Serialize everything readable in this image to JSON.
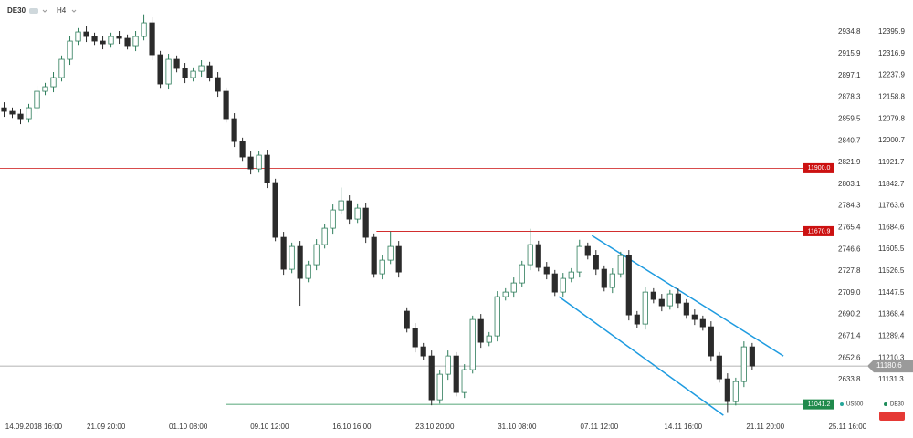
{
  "chart_data": {
    "type": "candlestick",
    "symbol": "DE30",
    "timeframe": "H4",
    "up_color": "#ffffff",
    "up_stroke": "#2e7d5b",
    "down_color": "#2b2b2b",
    "open": [
      12120.0,
      12107.0,
      12097.0,
      12080.4,
      12120.2,
      12180.0,
      12196.6,
      12229.8,
      12296.2,
      12362.6,
      12395.8,
      12379.2,
      12362.6,
      12352.6,
      12379.2,
      12372.6,
      12346.0,
      12379.2,
      12429.0,
      12312.8,
      12206.6,
      12296.2,
      12263.0,
      12229.8,
      12253.0,
      12273.0,
      12229.8,
      12180.0,
      12080.4,
      11997.4,
      11941.0,
      11897.8,
      11947.6,
      11848.0,
      11648.8,
      11532.6,
      11615.6,
      11499.4,
      11549.2,
      11622.2,
      11682.0,
      11748.4,
      11781.6,
      11715.2,
      11755.0,
      11648.8,
      11516.0,
      11565.8,
      11615.6,
      11380.0,
      11316.8,
      11250.4,
      11217.2,
      11057.8,
      11150.8,
      11217.2,
      11084.4,
      11167.4,
      11350.0,
      11267.0,
      11290.2,
      11433.0,
      11449.6,
      11482.8,
      11549.2,
      11622.2,
      11539.2,
      11516.0,
      11449.6,
      11499.4,
      11522.6,
      11615.6,
      11582.4,
      11532.6,
      11466.2,
      11516.0,
      11582.4,
      11366.6,
      11333.4,
      11449.6,
      11423.0,
      11399.8,
      11443.0,
      11409.8,
      11366.6,
      11350.0,
      11323.4,
      11217.2,
      11134.2,
      11051.2,
      11124.2,
      11250.4
    ],
    "high": [
      12140.0,
      12121.0,
      12117.0,
      12134.2,
      12200.0,
      12210.6,
      12249.8,
      12310.2,
      12382.6,
      12409.8,
      12415.8,
      12393.2,
      12382.6,
      12393.2,
      12399.2,
      12386.6,
      12399.2,
      12460.0,
      12449.0,
      12326.8,
      12316.2,
      12310.2,
      12283.0,
      12267.0,
      12293.0,
      12287.0,
      12249.8,
      12194.0,
      12100.4,
      12011.4,
      11961.0,
      11961.6,
      11967.6,
      11862.0,
      11668.8,
      11629.6,
      11635.6,
      11563.2,
      11642.2,
      11696.0,
      11768.4,
      11830.0,
      11801.6,
      11769.0,
      11775.0,
      11662.8,
      11585.8,
      11670.0,
      11635.6,
      11394.0,
      11336.8,
      11264.4,
      11237.2,
      11164.8,
      11237.2,
      11231.2,
      11187.4,
      11364.0,
      11370.0,
      11304.2,
      11453.0,
      11463.6,
      11502.8,
      11563.2,
      11680.0,
      11636.2,
      11559.2,
      11530.0,
      11519.4,
      11536.6,
      11640.0,
      11629.6,
      11602.4,
      11546.6,
      11536.0,
      11596.4,
      11602.4,
      11380.6,
      11469.6,
      11463.6,
      11443.0,
      11457.0,
      11463.0,
      11423.8,
      11386.6,
      11364.0,
      11343.4,
      11231.2,
      11154.2,
      11138.2,
      11270.4,
      11264.4
    ],
    "low": [
      12087.0,
      12083.0,
      12060.4,
      12066.4,
      12100.2,
      12166.0,
      12176.6,
      12215.8,
      12276.2,
      12348.6,
      12359.2,
      12348.6,
      12332.6,
      12338.6,
      12352.6,
      12332.0,
      12326.0,
      12365.2,
      12292.8,
      12192.6,
      12186.6,
      12249.0,
      12209.8,
      12215.8,
      12233.0,
      12215.8,
      12160.0,
      12066.4,
      11977.4,
      11927.0,
      11877.8,
      11883.8,
      11828.0,
      11634.8,
      11512.6,
      11518.6,
      11400.0,
      11485.4,
      11529.2,
      11608.2,
      11662.0,
      11734.4,
      11695.2,
      11701.2,
      11628.8,
      11502.0,
      11496.0,
      11551.8,
      11502.6,
      11302.8,
      11230.4,
      11203.2,
      11037.8,
      11043.8,
      11130.8,
      11070.4,
      11064.4,
      11153.4,
      11247.0,
      11253.0,
      11270.2,
      11419.0,
      11429.6,
      11468.8,
      11529.2,
      11525.2,
      11496.0,
      11435.6,
      11429.6,
      11485.4,
      11502.6,
      11568.4,
      11512.6,
      11452.2,
      11446.2,
      11502.0,
      11346.6,
      11319.4,
      11313.4,
      11409.0,
      11379.8,
      11385.8,
      11389.8,
      11352.6,
      11330.0,
      11309.4,
      11197.2,
      11120.2,
      11010.0,
      11037.2,
      11104.2,
      11166.6
    ],
    "close": [
      12107.0,
      12097.0,
      12080.4,
      12120.2,
      12180.0,
      12196.6,
      12229.8,
      12296.2,
      12362.6,
      12395.8,
      12379.2,
      12362.6,
      12352.6,
      12379.2,
      12372.6,
      12346.0,
      12379.2,
      12429.0,
      12312.8,
      12206.6,
      12296.2,
      12263.0,
      12229.8,
      12253.0,
      12273.0,
      12229.8,
      12180.0,
      12080.4,
      11997.4,
      11941.0,
      11897.8,
      11947.6,
      11848.0,
      11648.8,
      11532.6,
      11615.6,
      11499.4,
      11549.2,
      11622.2,
      11682.0,
      11748.4,
      11781.6,
      11715.2,
      11755.0,
      11648.8,
      11516.0,
      11565.8,
      11615.6,
      11522.6,
      11316.8,
      11250.4,
      11217.2,
      11057.8,
      11150.8,
      11217.2,
      11084.4,
      11167.4,
      11350.0,
      11267.0,
      11290.2,
      11433.0,
      11449.6,
      11482.8,
      11549.2,
      11622.2,
      11539.2,
      11516.0,
      11449.6,
      11499.4,
      11522.6,
      11615.6,
      11582.4,
      11532.6,
      11466.2,
      11516.0,
      11582.4,
      11366.6,
      11333.4,
      11449.6,
      11423.0,
      11399.8,
      11443.0,
      11409.8,
      11366.6,
      11350.0,
      11323.4,
      11217.2,
      11134.2,
      11051.2,
      11124.2,
      11250.4,
      11180.6
    ],
    "xlim": [
      -0.5,
      103.9
    ],
    "xticks": [
      {
        "value": 3.6,
        "label": "14.09.2018 16:00"
      },
      {
        "value": 12.4,
        "label": "21.09 20:00"
      },
      {
        "value": 22.4,
        "label": "01.10 08:00"
      },
      {
        "value": 32.3,
        "label": "09.10 12:00"
      },
      {
        "value": 42.3,
        "label": "16.10 16:00"
      },
      {
        "value": 52.4,
        "label": "23.10 20:00"
      },
      {
        "value": 62.4,
        "label": "31.10 08:00"
      },
      {
        "value": 72.4,
        "label": "07.11 12:00"
      },
      {
        "value": 82.6,
        "label": "14.11 16:00"
      },
      {
        "value": 92.6,
        "label": "21.11 20:00"
      },
      {
        "value": 102.6,
        "label": "25.11 16:00"
      }
    ],
    "ylim": [
      11001.8,
      12512.1
    ],
    "yticks": [
      12395.9,
      12316.9,
      12237.9,
      12158.8,
      12079.8,
      12000.7,
      11921.7,
      11842.7,
      11763.6,
      11684.6,
      11605.5,
      11526.5,
      11447.5,
      11368.4,
      11289.4,
      11210.3,
      11131.3
    ],
    "y2lim": [
      2603.0,
      2962.5
    ],
    "y2ticks": [
      2934.8,
      2915.9,
      2897.1,
      2878.3,
      2859.5,
      2840.7,
      2821.9,
      2803.1,
      2784.3,
      2765.4,
      2746.6,
      2727.8,
      {
        "value": 2709,
        "label": "2709.0"
      },
      2690.2,
      2671.4,
      2652.6,
      2633.8
    ],
    "levels": [
      {
        "value": 11900,
        "label": "11900.0",
        "color": "#cc1111",
        "from": -0.5
      },
      {
        "value": 11670.9,
        "label": "11670.9",
        "color": "#cc1111",
        "from": 45.3
      },
      {
        "value": 11041.2,
        "label": "11041.2",
        "color": "#1f8a4c",
        "from": 27
      }
    ],
    "last_price": {
      "value": 11180.6,
      "label": "11180.6",
      "color": "#9a9a9a"
    },
    "trendlines": [
      {
        "x": [
          71.5,
          94.8
        ],
        "y": [
          11655.4,
          11217.2
        ],
        "color": "#1e9be0"
      },
      {
        "x": [
          67.5,
          87.5
        ],
        "y": [
          11433.0,
          11001.4
        ],
        "color": "#1e9be0"
      }
    ],
    "legend": [
      {
        "name": "US500",
        "color": "#26a69a"
      },
      {
        "name": "DE30",
        "color": "#1e8c5a"
      }
    ]
  }
}
